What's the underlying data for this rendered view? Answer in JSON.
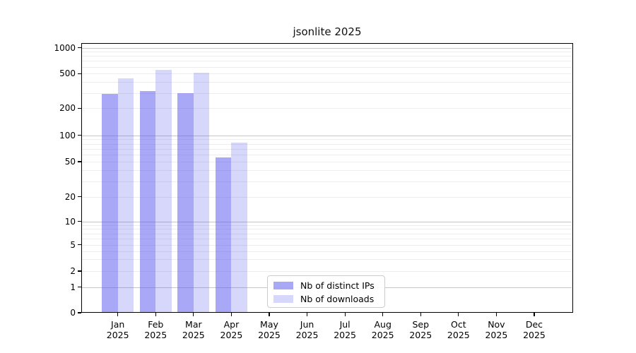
{
  "chart_data": {
    "type": "bar",
    "title": "jsonlite 2025",
    "categories": [
      "Jan 2025",
      "Feb 2025",
      "Mar 2025",
      "Apr 2025",
      "May 2025",
      "Jun 2025",
      "Jul 2025",
      "Aug 2025",
      "Sep 2025",
      "Oct 2025",
      "Nov 2025",
      "Dec 2025"
    ],
    "x_tick_labels": [
      [
        "Jan",
        "2025"
      ],
      [
        "Feb",
        "2025"
      ],
      [
        "Mar",
        "2025"
      ],
      [
        "Apr",
        "2025"
      ],
      [
        "May",
        "2025"
      ],
      [
        "Jun",
        "2025"
      ],
      [
        "Jul",
        "2025"
      ],
      [
        "Aug",
        "2025"
      ],
      [
        "Sep",
        "2025"
      ],
      [
        "Oct",
        "2025"
      ],
      [
        "Nov",
        "2025"
      ],
      [
        "Dec",
        "2025"
      ]
    ],
    "y_ticks": [
      0,
      1,
      2,
      5,
      10,
      20,
      50,
      100,
      200,
      500,
      1000
    ],
    "y_scale": "symlog",
    "ylim": [
      0,
      1200
    ],
    "grid": true,
    "legend_position": "lower center inside",
    "series": [
      {
        "name": "Nb of distinct IPs",
        "color_hex": "#5858f0",
        "alpha": 0.52,
        "values": [
          290,
          315,
          300,
          56,
          null,
          null,
          null,
          null,
          null,
          null,
          null,
          null
        ]
      },
      {
        "name": "Nb of downloads",
        "color_hex": "#5858f0",
        "alpha": 0.24,
        "values": [
          440,
          550,
          515,
          82,
          null,
          null,
          null,
          null,
          null,
          null,
          null,
          null
        ]
      }
    ],
    "colors": {
      "axis": "#000000",
      "grid_major": "#c6c6c6",
      "grid_minor": "#ededed",
      "legend_border": "#cccccc"
    }
  }
}
